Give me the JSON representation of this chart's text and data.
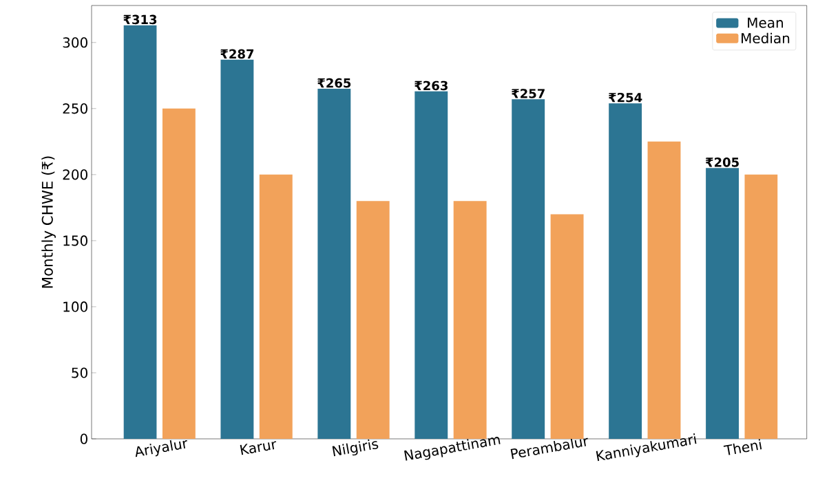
{
  "chart_data": {
    "type": "bar",
    "ylabel": "Monthly CHWE (₹)",
    "categories": [
      "Ariyalur",
      "Karur",
      "Nilgiris",
      "Nagapattinam",
      "Perambalur",
      "Kanniyakumari",
      "Theni"
    ],
    "series": [
      {
        "name": "Mean",
        "color": "#2c7593",
        "values": [
          313,
          287,
          265,
          263,
          257,
          254,
          205
        ],
        "value_labels": [
          "₹313",
          "₹287",
          "₹265",
          "₹263",
          "₹257",
          "₹254",
          "₹205"
        ]
      },
      {
        "name": "Median",
        "color": "#f2a25a",
        "values": [
          250,
          200,
          180,
          180,
          170,
          225,
          200
        ]
      }
    ],
    "ylim": [
      0,
      328
    ],
    "yticks": [
      0,
      50,
      100,
      150,
      200,
      250,
      300
    ],
    "grid": false,
    "legend": "top right"
  }
}
